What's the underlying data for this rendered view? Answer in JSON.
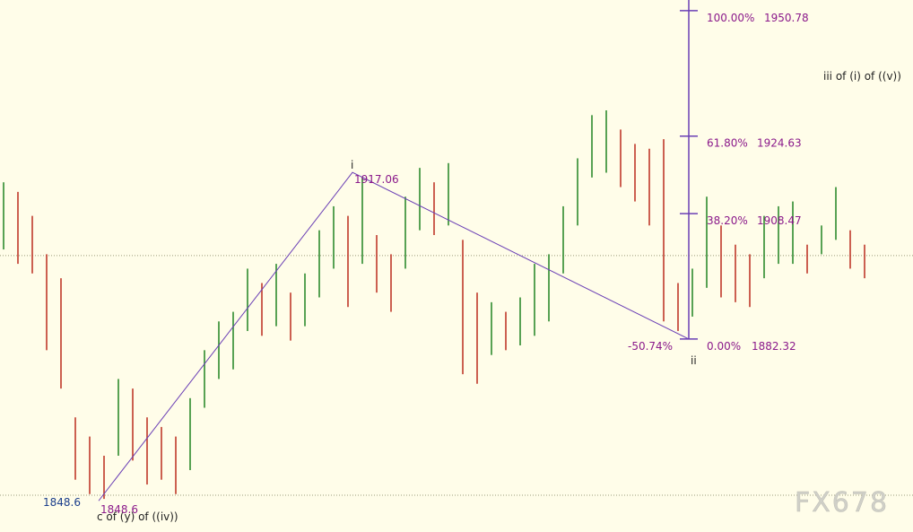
{
  "chart_data": {
    "type": "ohlc",
    "high": [
      1915,
      1913,
      1908,
      1900,
      1895,
      1866,
      1862,
      1858,
      1874,
      1872,
      1866,
      1864,
      1862,
      1870,
      1880,
      1886,
      1888,
      1897,
      1894,
      1898,
      1892,
      1896,
      1905,
      1910,
      1908,
      1916,
      1904,
      1900,
      1912,
      1918,
      1915,
      1919,
      1903,
      1892,
      1890,
      1888,
      1891,
      1898,
      1900,
      1910,
      1920,
      1929,
      1930,
      1926,
      1923,
      1922,
      1924,
      1894,
      1897,
      1912,
      1906,
      1902,
      1900,
      1908,
      1910,
      1911,
      1902,
      1906,
      1914,
      1905,
      1902
    ],
    "low": [
      1901,
      1898,
      1896,
      1880,
      1872,
      1853,
      1850,
      1849,
      1858,
      1857,
      1852,
      1853,
      1850,
      1855,
      1868,
      1874,
      1876,
      1884,
      1883,
      1885,
      1882,
      1885,
      1891,
      1897,
      1889,
      1898,
      1892,
      1888,
      1897,
      1905,
      1904,
      1906,
      1875,
      1873,
      1879,
      1880,
      1881,
      1883,
      1886,
      1896,
      1906,
      1916,
      1917,
      1914,
      1911,
      1906,
      1886,
      1884,
      1887,
      1893,
      1891,
      1890,
      1889,
      1895,
      1898,
      1898,
      1896,
      1900,
      1903,
      1897,
      1895
    ],
    "up_color": "#2e8b2e",
    "down_color": "#c0392b",
    "ylim": [
      1842.1,
      1953.0
    ],
    "hlines": [
      1899.72,
      1849.77
    ],
    "fib": [
      {
        "pct": "100.00%",
        "price": 1950.78
      },
      {
        "pct": "61.80%",
        "price": 1924.63
      },
      {
        "pct": "38.20%",
        "price": 1908.47
      },
      {
        "pct": "0.00%",
        "price": 1882.32
      }
    ],
    "extension": "-50.74%",
    "waves": [
      {
        "label": "c of (y) of ((iv))",
        "price": 1848.6
      },
      {
        "label": "i",
        "price": 1917.06
      },
      {
        "label": "ii",
        "price": 1882.32
      }
    ],
    "annotation": "iii of (i) of ((v))",
    "watermark": "FX678"
  }
}
